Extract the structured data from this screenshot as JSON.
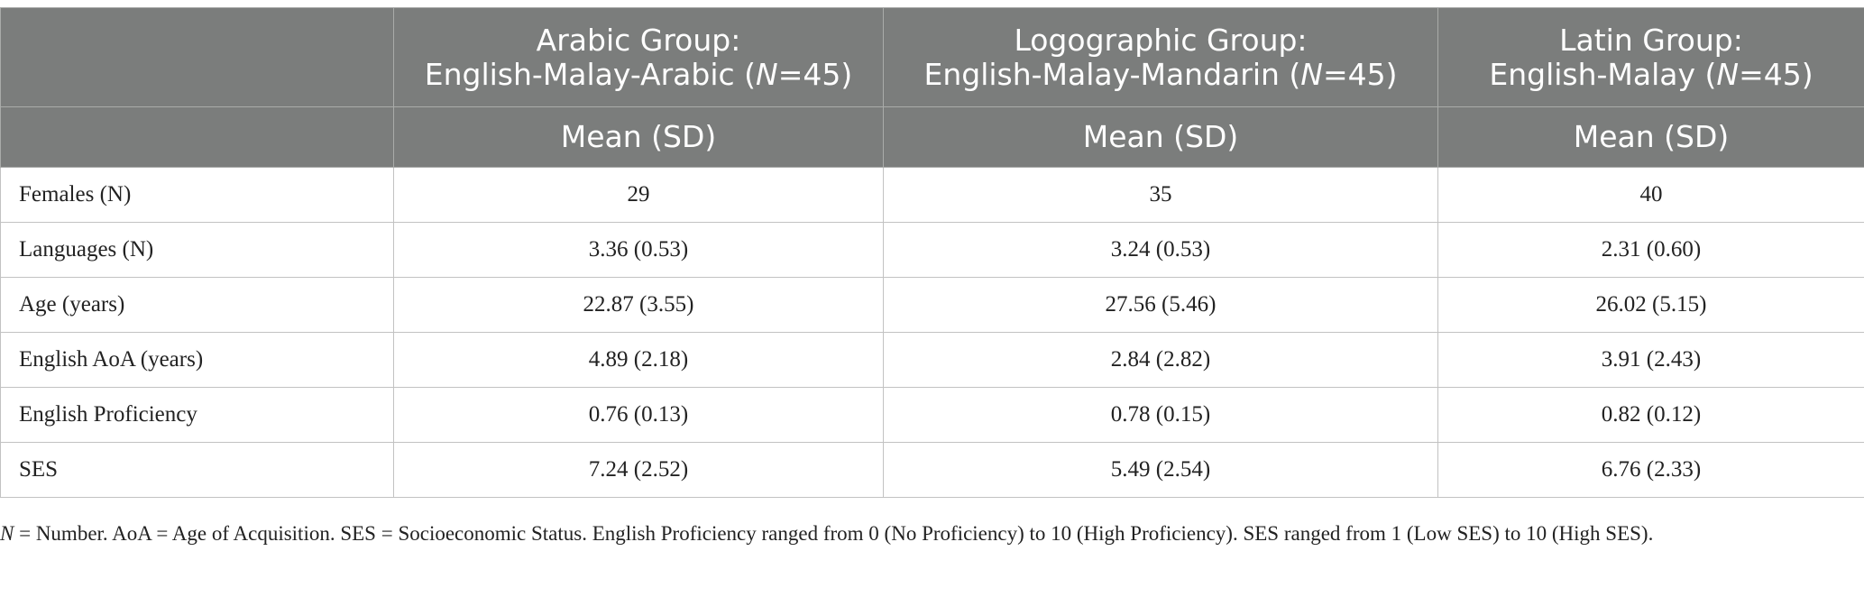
{
  "table": {
    "header": {
      "groups": [
        {
          "line1": "",
          "line2_prefix": "",
          "n_var": "",
          "n_suffix": ""
        },
        {
          "line1": "Arabic Group:",
          "line2_prefix": "English-Malay-Arabic (",
          "n_var": "N",
          "n_suffix": "=45)"
        },
        {
          "line1": "Logographic Group:",
          "line2_prefix": "English-Malay-Mandarin (",
          "n_var": "N",
          "n_suffix": "=45)"
        },
        {
          "line1": "Latin Group:",
          "line2_prefix": "English-Malay (",
          "n_var": "N",
          "n_suffix": "=45)"
        }
      ],
      "stat_label": "Mean (SD)"
    },
    "rows": [
      {
        "label": "Females (N)",
        "values": [
          "29",
          "35",
          "40"
        ]
      },
      {
        "label": "Languages (N)",
        "values": [
          "3.36 (0.53)",
          "3.24 (0.53)",
          "2.31 (0.60)"
        ]
      },
      {
        "label": "Age (years)",
        "values": [
          "22.87 (3.55)",
          "27.56 (5.46)",
          "26.02 (5.15)"
        ]
      },
      {
        "label": "English AoA (years)",
        "values": [
          "4.89 (2.18)",
          "2.84 (2.82)",
          "3.91 (2.43)"
        ]
      },
      {
        "label": "English Proficiency",
        "values": [
          "0.76 (0.13)",
          "0.78 (0.15)",
          "0.82 (0.12)"
        ]
      },
      {
        "label": "SES",
        "values": [
          "7.24 (2.52)",
          "5.49 (2.54)",
          "6.76 (2.33)"
        ]
      }
    ]
  },
  "footnote": {
    "n_var": "N",
    "text": " = Number. AoA = Age of Acquisition. SES = Socioeconomic Status. English Proficiency ranged from 0 (No Proficiency) to 10 (High Proficiency). SES ranged from 1 (Low SES) to 10 (High SES)."
  }
}
